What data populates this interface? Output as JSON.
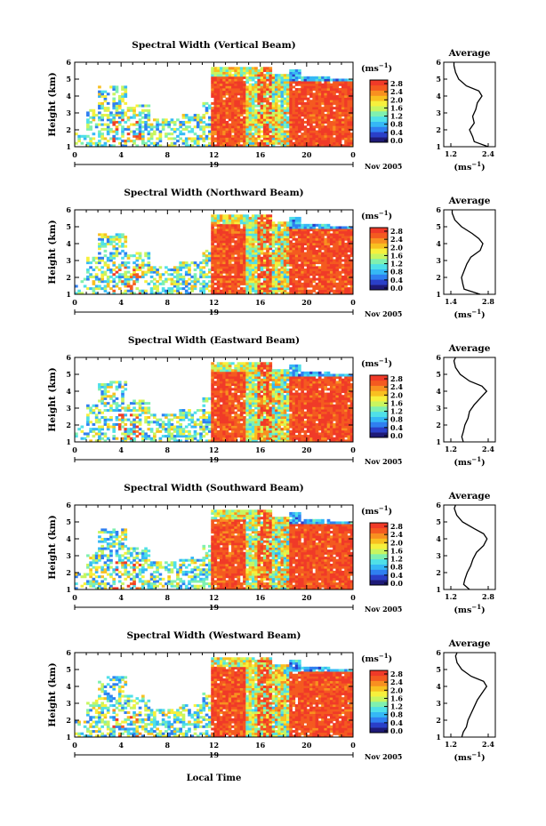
{
  "figure": {
    "xlabel": "Local Time",
    "day_label": "19",
    "date_label": "Nov 2005",
    "colorbar_unit": "(ms",
    "colorbar_unit_exp": "−1",
    "colorbar_unit_close": ")",
    "palette": [
      "#1e1a78",
      "#2a3fc8",
      "#2f7ff0",
      "#35b8f5",
      "#4fe0e8",
      "#7ff0b0",
      "#c8f560",
      "#f6f03c",
      "#f8c020",
      "#f89020",
      "#f45a20",
      "#f03a28"
    ]
  },
  "chart_data": [
    {
      "type": "heatmap",
      "title": "Spectral Width (Vertical Beam)",
      "ylabel": "Height (km)",
      "x_ticks": [
        "0",
        "4",
        "8",
        "12",
        "16",
        "20",
        "0"
      ],
      "xlim": [
        0,
        24
      ],
      "y_ticks": [
        "1",
        "2",
        "3",
        "4",
        "5",
        "6"
      ],
      "ylim": [
        1,
        6
      ],
      "colorbar_ticks": [
        "2.8",
        "2.4",
        "2.0",
        "1.6",
        "1.2",
        "0.8",
        "0.4",
        "0.0"
      ],
      "colorbar_range": [
        0.0,
        2.8
      ],
      "average_profile": {
        "title": "Average",
        "xlabel": "(ms",
        "x_ticks": [
          "1.2",
          "2.4"
        ],
        "xlim": [
          1.2,
          2.4
        ],
        "height_km": [
          1.0,
          1.3,
          1.6,
          2.0,
          2.4,
          2.8,
          3.2,
          3.6,
          4.0,
          4.3,
          4.6,
          5.0,
          5.4,
          5.8,
          6.0
        ],
        "value": [
          2.4,
          1.95,
          1.9,
          1.8,
          1.95,
          1.9,
          2.0,
          2.05,
          2.2,
          2.1,
          1.7,
          1.45,
          1.35,
          1.3,
          1.3
        ]
      }
    },
    {
      "type": "heatmap",
      "title": "Spectral Width (Northward Beam)",
      "ylabel": "Height (km)",
      "x_ticks": [
        "0",
        "4",
        "8",
        "12",
        "16",
        "20",
        "0"
      ],
      "xlim": [
        0,
        24
      ],
      "y_ticks": [
        "1",
        "2",
        "3",
        "4",
        "5",
        "6"
      ],
      "ylim": [
        1,
        6
      ],
      "colorbar_ticks": [
        "2.8",
        "2.4",
        "2.0",
        "1.6",
        "1.2",
        "0.8",
        "0.4",
        "0.0"
      ],
      "colorbar_range": [
        0.0,
        2.8
      ],
      "average_profile": {
        "title": "Average",
        "xlabel": "(ms",
        "x_ticks": [
          "1.4",
          "2.8"
        ],
        "xlim": [
          1.4,
          2.8
        ],
        "height_km": [
          1.0,
          1.3,
          1.6,
          2.0,
          2.4,
          2.8,
          3.2,
          3.6,
          4.0,
          4.3,
          4.6,
          5.0,
          5.4,
          5.8,
          6.0
        ],
        "value": [
          2.5,
          1.9,
          1.85,
          1.8,
          1.9,
          2.0,
          2.15,
          2.5,
          2.6,
          2.45,
          2.2,
          1.8,
          1.55,
          1.45,
          1.45
        ]
      }
    },
    {
      "type": "heatmap",
      "title": "Spectral Width (Eastward Beam)",
      "ylabel": "Height (km)",
      "x_ticks": [
        "0",
        "4",
        "8",
        "12",
        "16",
        "20",
        "0"
      ],
      "xlim": [
        0,
        24
      ],
      "y_ticks": [
        "1",
        "2",
        "3",
        "4",
        "5",
        "6"
      ],
      "ylim": [
        1,
        6
      ],
      "colorbar_ticks": [
        "2.8",
        "2.4",
        "2.0",
        "1.6",
        "1.2",
        "0.8",
        "0.4",
        "0.0"
      ],
      "colorbar_range": [
        0.0,
        2.8
      ],
      "average_profile": {
        "title": "Average",
        "xlabel": "(ms",
        "x_ticks": [
          "1.2",
          "2.4"
        ],
        "xlim": [
          1.2,
          2.4
        ],
        "height_km": [
          1.0,
          1.3,
          1.6,
          2.0,
          2.4,
          2.8,
          3.2,
          3.6,
          4.0,
          4.3,
          4.6,
          5.0,
          5.4,
          5.8,
          6.0
        ],
        "value": [
          1.6,
          1.55,
          1.6,
          1.65,
          1.75,
          1.8,
          1.95,
          2.15,
          2.35,
          2.2,
          1.8,
          1.5,
          1.35,
          1.3,
          1.35
        ]
      }
    },
    {
      "type": "heatmap",
      "title": "Spectral Width (Southward Beam)",
      "ylabel": "Height (km)",
      "x_ticks": [
        "0",
        "4",
        "8",
        "12",
        "16",
        "20",
        "0"
      ],
      "xlim": [
        0,
        24
      ],
      "y_ticks": [
        "1",
        "2",
        "3",
        "4",
        "5",
        "6"
      ],
      "ylim": [
        1,
        6
      ],
      "colorbar_ticks": [
        "2.8",
        "2.4",
        "2.0",
        "1.6",
        "1.2",
        "0.8",
        "0.4",
        "0.0"
      ],
      "colorbar_range": [
        0.0,
        2.8
      ],
      "average_profile": {
        "title": "Average",
        "xlabel": "(ms",
        "x_ticks": [
          "1.2",
          "2.8"
        ],
        "xlim": [
          1.2,
          2.8
        ],
        "height_km": [
          1.0,
          1.3,
          1.6,
          2.0,
          2.4,
          2.8,
          3.2,
          3.6,
          4.0,
          4.3,
          4.6,
          5.0,
          5.4,
          5.8,
          6.0
        ],
        "value": [
          2.0,
          1.75,
          1.8,
          1.9,
          2.05,
          2.15,
          2.3,
          2.6,
          2.75,
          2.6,
          2.2,
          1.7,
          1.45,
          1.35,
          1.4
        ]
      }
    },
    {
      "type": "heatmap",
      "title": "Spectral Width (Westward Beam)",
      "ylabel": "Height (km)",
      "x_ticks": [
        "0",
        "4",
        "8",
        "12",
        "16",
        "20",
        "0"
      ],
      "xlim": [
        0,
        24
      ],
      "y_ticks": [
        "1",
        "2",
        "3",
        "4",
        "5",
        "6"
      ],
      "ylim": [
        1,
        6
      ],
      "colorbar_ticks": [
        "2.8",
        "2.4",
        "2.0",
        "1.6",
        "1.2",
        "0.8",
        "0.4",
        "0.0"
      ],
      "colorbar_range": [
        0.0,
        2.8
      ],
      "average_profile": {
        "title": "Average",
        "xlabel": "(ms",
        "x_ticks": [
          "1.2",
          "2.4"
        ],
        "xlim": [
          1.2,
          2.4
        ],
        "height_km": [
          1.0,
          1.3,
          1.6,
          2.0,
          2.4,
          2.8,
          3.2,
          3.6,
          4.0,
          4.3,
          4.6,
          5.0,
          5.4,
          5.8,
          6.0
        ],
        "value": [
          1.55,
          1.6,
          1.7,
          1.75,
          1.85,
          1.95,
          2.05,
          2.2,
          2.35,
          2.25,
          1.85,
          1.55,
          1.4,
          1.35,
          1.4
        ]
      }
    }
  ]
}
